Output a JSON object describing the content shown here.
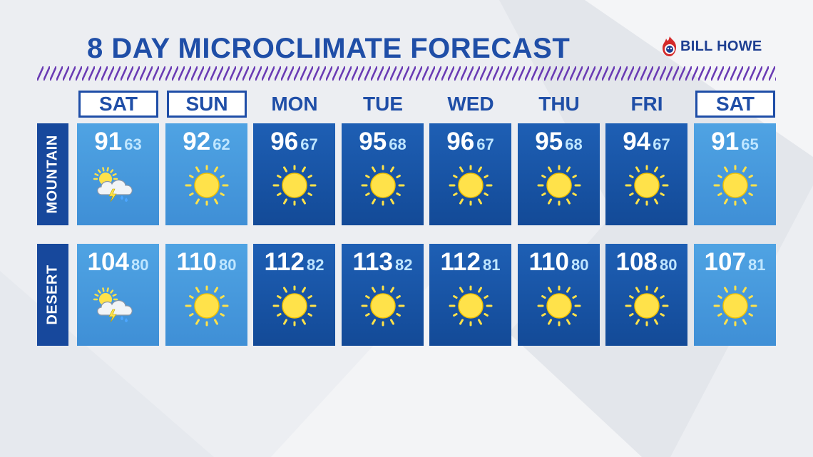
{
  "title": "8 DAY MICROCLIMATE FORECAST",
  "logo": {
    "text": "BILL HOWE",
    "icon": "flame-mascot-icon"
  },
  "days": [
    {
      "label": "SAT",
      "boxed": true
    },
    {
      "label": "SUN",
      "boxed": true
    },
    {
      "label": "MON",
      "boxed": false
    },
    {
      "label": "TUE",
      "boxed": false
    },
    {
      "label": "WED",
      "boxed": false
    },
    {
      "label": "THU",
      "boxed": false
    },
    {
      "label": "FRI",
      "boxed": false
    },
    {
      "label": "SAT",
      "boxed": true
    }
  ],
  "rows": [
    {
      "label": "MOUNTAIN",
      "cells": [
        {
          "hi": "91",
          "lo": "63",
          "icon": "thunderstorm-partly-sunny-icon",
          "shade": "light"
        },
        {
          "hi": "92",
          "lo": "62",
          "icon": "sun-icon",
          "shade": "light"
        },
        {
          "hi": "96",
          "lo": "67",
          "icon": "sun-icon",
          "shade": "dark"
        },
        {
          "hi": "95",
          "lo": "68",
          "icon": "sun-icon",
          "shade": "dark"
        },
        {
          "hi": "96",
          "lo": "67",
          "icon": "sun-icon",
          "shade": "dark"
        },
        {
          "hi": "95",
          "lo": "68",
          "icon": "sun-icon",
          "shade": "dark"
        },
        {
          "hi": "94",
          "lo": "67",
          "icon": "sun-icon",
          "shade": "dark"
        },
        {
          "hi": "91",
          "lo": "65",
          "icon": "sun-icon",
          "shade": "light"
        }
      ]
    },
    {
      "label": "DESERT",
      "cells": [
        {
          "hi": "104",
          "lo": "80",
          "icon": "thunderstorm-partly-sunny-icon",
          "shade": "light"
        },
        {
          "hi": "110",
          "lo": "80",
          "icon": "sun-icon",
          "shade": "light"
        },
        {
          "hi": "112",
          "lo": "82",
          "icon": "sun-icon",
          "shade": "dark"
        },
        {
          "hi": "113",
          "lo": "82",
          "icon": "sun-icon",
          "shade": "dark"
        },
        {
          "hi": "112",
          "lo": "81",
          "icon": "sun-icon",
          "shade": "dark"
        },
        {
          "hi": "110",
          "lo": "80",
          "icon": "sun-icon",
          "shade": "dark"
        },
        {
          "hi": "108",
          "lo": "80",
          "icon": "sun-icon",
          "shade": "dark"
        },
        {
          "hi": "107",
          "lo": "81",
          "icon": "sun-icon",
          "shade": "light"
        }
      ]
    }
  ]
}
